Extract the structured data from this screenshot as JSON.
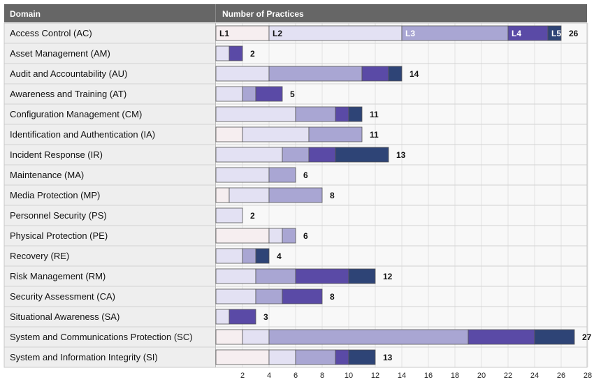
{
  "chart_data": {
    "type": "bar",
    "orientation": "horizontal",
    "stacked": true,
    "headers": {
      "domain": "Domain",
      "practices": "Number of Practices"
    },
    "level_labels": [
      "L1",
      "L2",
      "L3",
      "L4",
      "L5"
    ],
    "colors": [
      "#f6eef0",
      "#e3e1f3",
      "#a9a6d3",
      "#5a4aa6",
      "#2e4476"
    ],
    "xlim": [
      0,
      28
    ],
    "x_ticks": [
      2,
      4,
      6,
      8,
      10,
      12,
      14,
      16,
      18,
      20,
      22,
      24,
      26,
      28
    ],
    "grid": true,
    "categories": [
      "Access Control (AC)",
      "Asset Management (AM)",
      "Audit and Accountability (AU)",
      "Awareness and Training (AT)",
      "Configuration Management (CM)",
      "Identification and Authentication (IA)",
      "Incident Response (IR)",
      "Maintenance (MA)",
      "Media Protection (MP)",
      "Personnel Security (PS)",
      "Physical Protection (PE)",
      "Recovery (RE)",
      "Risk Management (RM)",
      "Security Assessment (CA)",
      "Situational Awareness (SA)",
      "System and Communications Protection (SC)",
      "System and Information Integrity (SI)"
    ],
    "totals": [
      26,
      2,
      14,
      5,
      11,
      11,
      13,
      6,
      8,
      2,
      6,
      4,
      12,
      8,
      3,
      27,
      13
    ],
    "series": [
      {
        "name": "L1",
        "values": [
          4,
          0,
          0,
          0,
          0,
          2,
          0,
          0,
          1,
          0,
          4,
          0,
          0,
          0,
          0,
          2,
          4
        ]
      },
      {
        "name": "L2",
        "values": [
          10,
          1,
          4,
          2,
          6,
          5,
          5,
          4,
          3,
          2,
          1,
          2,
          3,
          3,
          1,
          2,
          2
        ]
      },
      {
        "name": "L3",
        "values": [
          8,
          0,
          7,
          1,
          3,
          4,
          2,
          2,
          4,
          0,
          1,
          1,
          3,
          2,
          0,
          15,
          3
        ]
      },
      {
        "name": "L4",
        "values": [
          3,
          1,
          2,
          2,
          1,
          0,
          2,
          0,
          0,
          0,
          0,
          0,
          4,
          3,
          2,
          5,
          1
        ]
      },
      {
        "name": "L5",
        "values": [
          1,
          0,
          1,
          0,
          1,
          0,
          4,
          0,
          0,
          0,
          0,
          1,
          2,
          0,
          0,
          3,
          2
        ]
      }
    ]
  }
}
